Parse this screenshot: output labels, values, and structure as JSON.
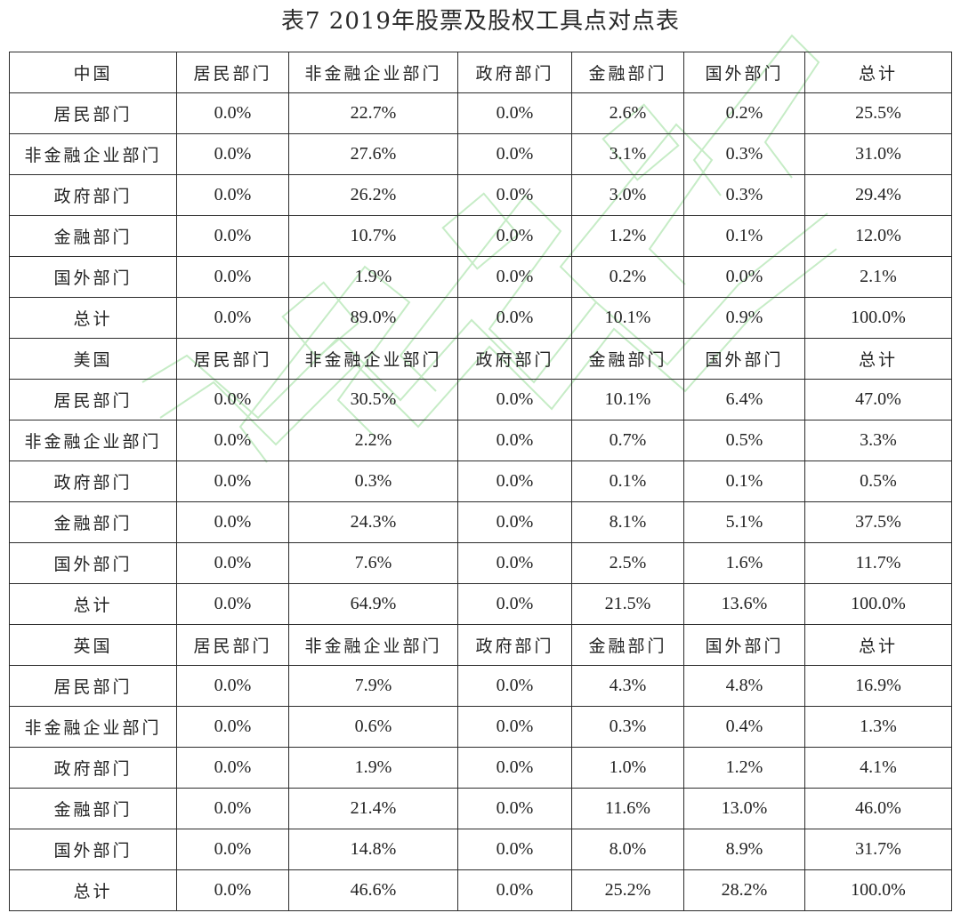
{
  "title": "表7  2019年股票及股权工具点对点表",
  "column_headers": [
    "居民部门",
    "非金融企业部门",
    "政府部门",
    "金融部门",
    "国外部门",
    "总计"
  ],
  "sections": [
    {
      "country": "中国",
      "rows": [
        {
          "label": "居民部门",
          "values": [
            "0.0%",
            "22.7%",
            "0.0%",
            "2.6%",
            "0.2%",
            "25.5%"
          ]
        },
        {
          "label": "非金融企业部门",
          "values": [
            "0.0%",
            "27.6%",
            "0.0%",
            "3.1%",
            "0.3%",
            "31.0%"
          ]
        },
        {
          "label": "政府部门",
          "values": [
            "0.0%",
            "26.2%",
            "0.0%",
            "3.0%",
            "0.3%",
            "29.4%"
          ]
        },
        {
          "label": "金融部门",
          "values": [
            "0.0%",
            "10.7%",
            "0.0%",
            "1.2%",
            "0.1%",
            "12.0%"
          ]
        },
        {
          "label": "国外部门",
          "values": [
            "0.0%",
            "1.9%",
            "0.0%",
            "0.2%",
            "0.0%",
            "2.1%"
          ]
        },
        {
          "label": "总计",
          "values": [
            "0.0%",
            "89.0%",
            "0.0%",
            "10.1%",
            "0.9%",
            "100.0%"
          ]
        }
      ]
    },
    {
      "country": "美国",
      "rows": [
        {
          "label": "居民部门",
          "values": [
            "0.0%",
            "30.5%",
            "0.0%",
            "10.1%",
            "6.4%",
            "47.0%"
          ]
        },
        {
          "label": "非金融企业部门",
          "values": [
            "0.0%",
            "2.2%",
            "0.0%",
            "0.7%",
            "0.5%",
            "3.3%"
          ]
        },
        {
          "label": "政府部门",
          "values": [
            "0.0%",
            "0.3%",
            "0.0%",
            "0.1%",
            "0.1%",
            "0.5%"
          ]
        },
        {
          "label": "金融部门",
          "values": [
            "0.0%",
            "24.3%",
            "0.0%",
            "8.1%",
            "5.1%",
            "37.5%"
          ]
        },
        {
          "label": "国外部门",
          "values": [
            "0.0%",
            "7.6%",
            "0.0%",
            "2.5%",
            "1.6%",
            "11.7%"
          ]
        },
        {
          "label": "总计",
          "values": [
            "0.0%",
            "64.9%",
            "0.0%",
            "21.5%",
            "13.6%",
            "100.0%"
          ]
        }
      ]
    },
    {
      "country": "英国",
      "rows": [
        {
          "label": "居民部门",
          "values": [
            "0.0%",
            "7.9%",
            "0.0%",
            "4.3%",
            "4.8%",
            "16.9%"
          ]
        },
        {
          "label": "非金融企业部门",
          "values": [
            "0.0%",
            "0.6%",
            "0.0%",
            "0.3%",
            "0.4%",
            "1.3%"
          ]
        },
        {
          "label": "政府部门",
          "values": [
            "0.0%",
            "1.9%",
            "0.0%",
            "1.0%",
            "1.2%",
            "4.1%"
          ]
        },
        {
          "label": "金融部门",
          "values": [
            "0.0%",
            "21.4%",
            "0.0%",
            "11.6%",
            "13.0%",
            "46.0%"
          ]
        },
        {
          "label": "国外部门",
          "values": [
            "0.0%",
            "14.8%",
            "0.0%",
            "8.0%",
            "8.9%",
            "31.7%"
          ]
        },
        {
          "label": "总计",
          "values": [
            "0.0%",
            "46.6%",
            "0.0%",
            "25.2%",
            "28.2%",
            "100.0%"
          ]
        }
      ]
    }
  ],
  "colors": {
    "watermark": "#bfe8bf",
    "border": "#2c2c2c",
    "text": "#222222"
  }
}
